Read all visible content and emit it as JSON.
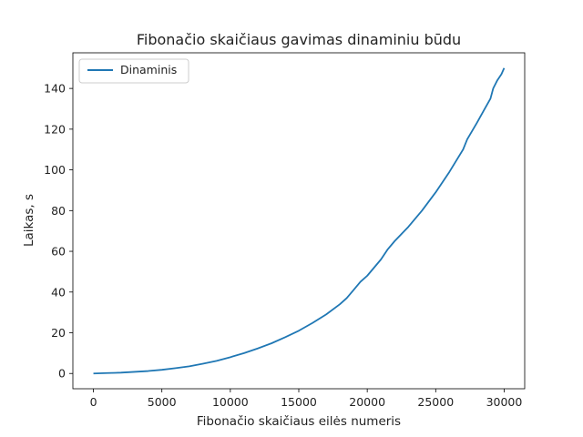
{
  "chart_data": {
    "type": "line",
    "title": "Fibonačio skaičiaus gavimas dinaminiu būdu",
    "xlabel": "Fibonačio skaičiaus eilės numeris",
    "ylabel": "Laikas, s",
    "xlim": [
      -1500,
      31500
    ],
    "ylim": [
      -7.5,
      157.5
    ],
    "xticks": [
      0,
      5000,
      10000,
      15000,
      20000,
      25000,
      30000
    ],
    "yticks": [
      0,
      20,
      40,
      60,
      80,
      100,
      120,
      140
    ],
    "grid": false,
    "legend_position": "top-left",
    "series": [
      {
        "name": "Dinaminis",
        "color": "#1f77b4",
        "x": [
          0,
          1000,
          2000,
          3000,
          4000,
          5000,
          6000,
          7000,
          8000,
          9000,
          10000,
          11000,
          12000,
          13000,
          14000,
          15000,
          16000,
          17000,
          18000,
          18500,
          19000,
          19500,
          20000,
          21000,
          21500,
          22000,
          23000,
          24000,
          25000,
          26000,
          27000,
          27300,
          28000,
          28500,
          29000,
          29200,
          29500,
          29800,
          30000
        ],
        "y": [
          0,
          0.2,
          0.4,
          0.8,
          1.2,
          1.8,
          2.6,
          3.5,
          4.8,
          6.2,
          8,
          10,
          12.3,
          14.8,
          17.8,
          21,
          24.8,
          29,
          34,
          37,
          41,
          45,
          48,
          56,
          61,
          65,
          72,
          80,
          89,
          99,
          110,
          115,
          123,
          129,
          135,
          140,
          144,
          147,
          150
        ]
      }
    ]
  }
}
